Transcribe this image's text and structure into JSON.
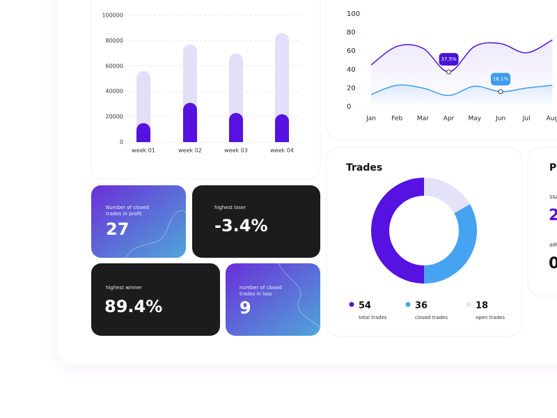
{
  "bar_chart": {
    "type": "bar",
    "categories": [
      "week 01",
      "week 02",
      "week 03",
      "week 04"
    ],
    "series": [
      {
        "color": "#e2e0f8",
        "values": [
          56000,
          77000,
          70000,
          86000
        ]
      },
      {
        "color": "#5512e0",
        "values": [
          15000,
          31000,
          23000,
          22000
        ]
      }
    ],
    "ylim": [
      0,
      100000
    ],
    "yticks": [
      0,
      20000,
      40000,
      60000,
      80000,
      100000
    ],
    "grid": true
  },
  "line_chart": {
    "type": "line",
    "x": [
      "Jan",
      "Feb",
      "Mar",
      "Apr",
      "May",
      "Jun",
      "Jul",
      "Aug"
    ],
    "series": [
      {
        "color": "#4a12d6",
        "values": [
          45,
          65,
          63,
          37.5,
          65,
          68,
          58,
          72
        ],
        "value_labels": [
          null,
          null,
          null,
          "37.5%",
          null,
          null,
          null,
          null
        ]
      },
      {
        "color": "#3b9cf0",
        "values": [
          13,
          23,
          20,
          12,
          22,
          16.1,
          20,
          23
        ],
        "value_labels": [
          null,
          null,
          null,
          null,
          null,
          "16.1%",
          null,
          null
        ]
      }
    ],
    "ylim": [
      0,
      100
    ],
    "yticks": [
      0,
      20,
      40,
      60,
      80,
      100
    ]
  },
  "trades": {
    "type": "pie",
    "title": "Trades",
    "categories": [
      "total trades",
      "closed trades",
      "open trades"
    ],
    "values": [
      54,
      36,
      18
    ],
    "colors": [
      "#5512e0",
      "#46a3f2",
      "#e4e2f8"
    ]
  },
  "stats": [
    {
      "label": [
        "Number of closed",
        "trades in profit"
      ],
      "value": "27"
    },
    {
      "label": [
        "highest loser"
      ],
      "value": "-3.4%"
    },
    {
      "label": [
        "highest winner"
      ],
      "value": "89.4%"
    },
    {
      "label": [
        "number of closed",
        "trades in loss"
      ],
      "value": "9"
    }
  ],
  "side_card": {
    "title": "P",
    "label_1": "S&P",
    "value_1": "2",
    "label_2": "diff",
    "value_2": "0"
  }
}
